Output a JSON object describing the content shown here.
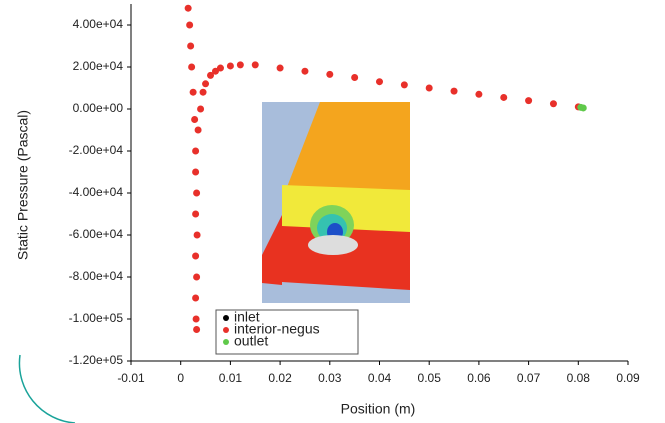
{
  "chart_data": {
    "type": "scatter",
    "x_label": "Position (m)",
    "y_label": "Static Pressure (Pascal)",
    "xlim": [
      -0.01,
      0.09
    ],
    "ylim": [
      -120000,
      50000
    ],
    "xticks": [
      -0.01,
      0,
      0.01,
      0.02,
      0.03,
      0.04,
      0.05,
      0.06,
      0.07,
      0.08,
      0.09
    ],
    "yticks": [
      {
        "value": 40000,
        "label": "4.00e+04"
      },
      {
        "value": 20000,
        "label": "2.00e+04"
      },
      {
        "value": 0,
        "label": "0.00e+00"
      },
      {
        "value": -20000,
        "label": "-2.00e+04"
      },
      {
        "value": -40000,
        "label": "-4.00e+04"
      },
      {
        "value": -60000,
        "label": "-6.00e+04"
      },
      {
        "value": -80000,
        "label": "-8.00e+04"
      },
      {
        "value": -100000,
        "label": "-1.00e+05"
      },
      {
        "value": -120000,
        "label": "-1.20e+05"
      }
    ],
    "series": [
      {
        "name": "inlet",
        "color": "#000000",
        "x": [],
        "values": []
      },
      {
        "name": "interior-negus",
        "color": "#e8302a",
        "x": [
          0.0015,
          0.0018,
          0.002,
          0.0022,
          0.0025,
          0.0028,
          0.003,
          0.003,
          0.0032,
          0.003,
          0.0033,
          0.003,
          0.0032,
          0.003,
          0.0031,
          0.0032,
          0.0035,
          0.004,
          0.0045,
          0.005,
          0.006,
          0.007,
          0.008,
          0.01,
          0.012,
          0.015,
          0.02,
          0.025,
          0.03,
          0.035,
          0.04,
          0.045,
          0.05,
          0.055,
          0.06,
          0.065,
          0.07,
          0.075,
          0.08
        ],
        "values": [
          48000,
          40000,
          30000,
          20000,
          8000,
          -5000,
          -20000,
          -30000,
          -40000,
          -50000,
          -60000,
          -70000,
          -80000,
          -90000,
          -100000,
          -105000,
          -10000,
          0,
          8000,
          12000,
          16000,
          18000,
          19500,
          20500,
          21000,
          21000,
          19500,
          18000,
          16500,
          15000,
          13000,
          11500,
          10000,
          8500,
          7000,
          5500,
          4000,
          2500,
          1000
        ]
      },
      {
        "name": "outlet",
        "color": "#5fc94a",
        "x": [
          0.0805,
          0.081
        ],
        "values": [
          800,
          500
        ]
      }
    ]
  }
}
